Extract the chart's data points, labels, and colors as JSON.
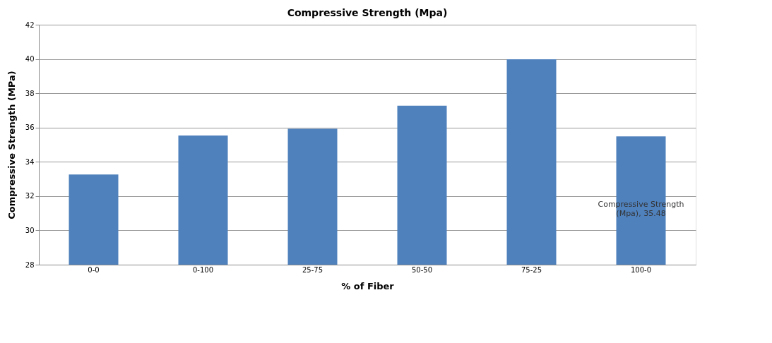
{
  "chart_data": {
    "type": "bar",
    "title": "Compressive Strength (Mpa)",
    "xlabel": "% of Fiber",
    "ylabel": "Compressive Strength (MPa)",
    "categories": [
      "0-0",
      "0-100",
      "25-75",
      "50-50",
      "75-25",
      "100-0"
    ],
    "values": [
      33.26,
      35.54,
      35.93,
      37.27,
      39.98,
      35.48
    ],
    "value_labels": [
      null,
      null,
      null,
      null,
      null,
      "Compressive Strength (Mpa), 35.48"
    ],
    "color": "#4f81bd",
    "ylim": [
      28,
      42
    ],
    "yticks": [
      28,
      30,
      32,
      34,
      36,
      38,
      40,
      42
    ],
    "grid": "y"
  }
}
